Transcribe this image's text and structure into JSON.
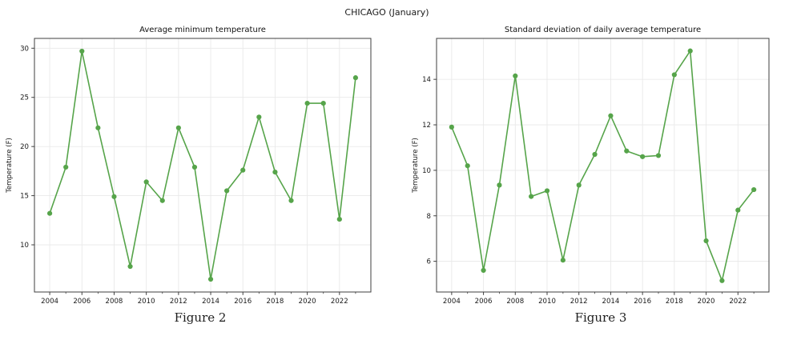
{
  "page": {
    "suptitle": "CHICAGO (January)"
  },
  "colors": {
    "line": "#56a44a",
    "marker": "#56a44a",
    "grid": "#e9e9e9",
    "spine": "#3f3f3f",
    "tick_text": "#1a1a1a",
    "title_text": "#111111"
  },
  "chart_data": [
    {
      "type": "line",
      "title": "Average minimum temperature",
      "xlabel": "",
      "ylabel": "Temperature (F)",
      "caption": "Figure 2",
      "legend": "none",
      "grid": true,
      "x": [
        2004,
        2005,
        2006,
        2007,
        2008,
        2009,
        2010,
        2011,
        2012,
        2013,
        2014,
        2015,
        2016,
        2017,
        2018,
        2019,
        2020,
        2021,
        2022,
        2023
      ],
      "values": [
        13.2,
        17.9,
        29.7,
        21.9,
        14.9,
        7.8,
        16.4,
        14.5,
        21.9,
        17.9,
        6.5,
        15.5,
        17.6,
        23.0,
        17.4,
        14.5,
        24.4,
        24.4,
        12.6,
        27.0
      ],
      "xlim": [
        2003.05,
        2023.95
      ],
      "ylim": [
        5.2,
        31.0
      ],
      "xticks": [
        2004,
        2006,
        2008,
        2010,
        2012,
        2014,
        2016,
        2018,
        2020,
        2022
      ],
      "yticks": [
        10,
        15,
        20,
        25,
        30
      ]
    },
    {
      "type": "line",
      "title": "Standard deviation of daily average temperature",
      "xlabel": "",
      "ylabel": "Temperature (F)",
      "caption": "Figure 3",
      "legend": "none",
      "grid": true,
      "x": [
        2004,
        2005,
        2006,
        2007,
        2008,
        2009,
        2010,
        2011,
        2012,
        2013,
        2014,
        2015,
        2016,
        2017,
        2018,
        2019,
        2020,
        2021,
        2022,
        2023
      ],
      "values": [
        11.9,
        10.2,
        5.6,
        9.35,
        14.15,
        8.85,
        9.1,
        6.05,
        9.35,
        10.7,
        12.4,
        10.85,
        10.6,
        10.65,
        14.2,
        15.25,
        6.9,
        5.15,
        8.25,
        9.15
      ],
      "xlim": [
        2003.05,
        2023.95
      ],
      "ylim": [
        4.65,
        15.8
      ],
      "xticks": [
        2004,
        2006,
        2008,
        2010,
        2012,
        2014,
        2016,
        2018,
        2020,
        2022
      ],
      "yticks": [
        6,
        8,
        10,
        12,
        14
      ]
    }
  ]
}
